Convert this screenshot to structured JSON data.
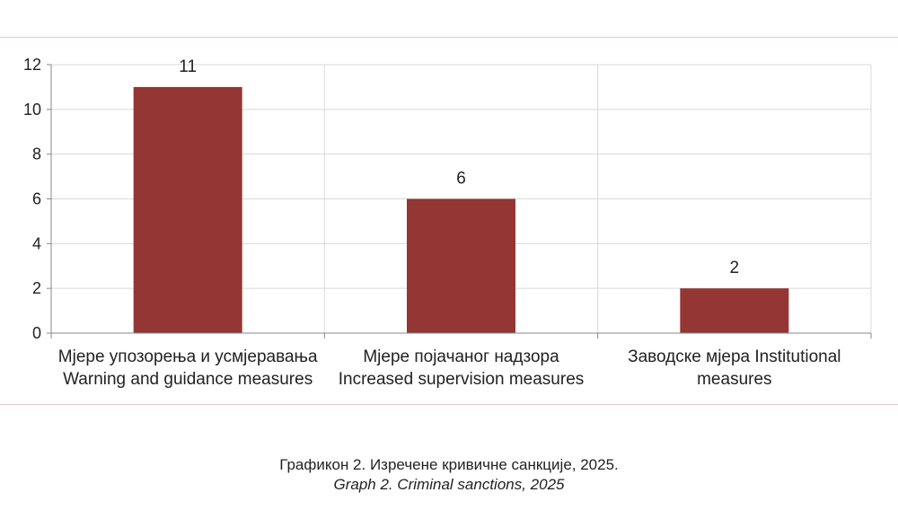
{
  "chart_data": {
    "type": "bar",
    "categories": [
      [
        "Мјере упозорења и усмјеравања",
        "Warning and guidance measures"
      ],
      [
        "Мјере појачаног надзора",
        "Increased supervision measures"
      ],
      [
        "Заводске мјера Institutional",
        "measures"
      ]
    ],
    "values": [
      11,
      6,
      2
    ],
    "data_labels": [
      "11",
      "6",
      "2"
    ],
    "yticks": [
      "0",
      "2",
      "4",
      "6",
      "8",
      "10",
      "12"
    ],
    "ylim": [
      0,
      12
    ],
    "grid": true,
    "bar_color": "#943634",
    "grid_color": "#d9d9d9"
  },
  "caption": {
    "line1": "Графикон 2. Изречене кривичне санкције, 2025.",
    "line2": "Graph 2. Criminal sanctions, 2025"
  }
}
